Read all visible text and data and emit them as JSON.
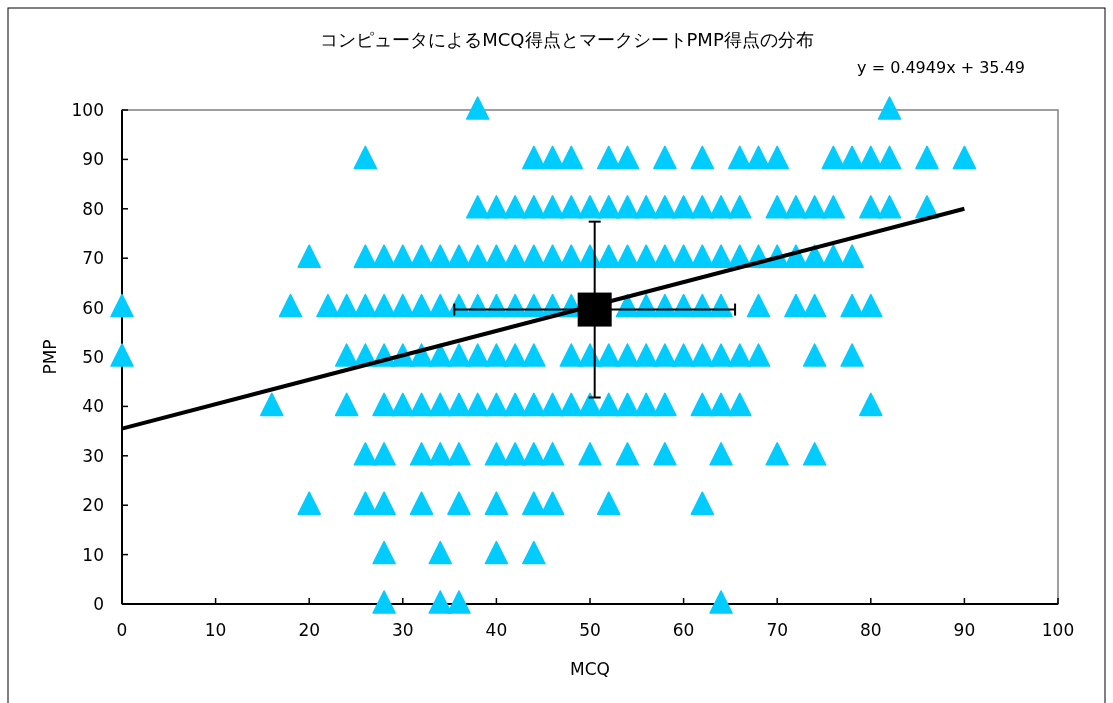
{
  "chart_data": {
    "type": "scatter",
    "title": "コンピュータによるMCQ得点とマークシートPMP得点の分布",
    "xlabel": "MCQ",
    "ylabel": "PMP",
    "xlim": [
      0,
      100
    ],
    "ylim": [
      0,
      100
    ],
    "xticks": [
      0,
      10,
      20,
      30,
      40,
      50,
      60,
      70,
      80,
      90,
      100
    ],
    "yticks": [
      0,
      10,
      20,
      30,
      40,
      50,
      60,
      70,
      80,
      90,
      100
    ],
    "grid": false,
    "annotations": [
      "y = 0.4949x + 35.49"
    ],
    "series": [
      {
        "type": "scatter",
        "marker": "triangle",
        "color": "#00ccff",
        "x": [
          38,
          82
        ],
        "values": [
          100,
          100
        ]
      },
      {
        "type": "scatter",
        "marker": "triangle",
        "color": "#00ccff",
        "x": [
          26,
          44,
          46,
          48,
          52,
          54,
          58,
          62,
          66,
          68,
          70,
          76,
          78,
          80,
          82,
          86,
          90
        ],
        "values": [
          90,
          90,
          90,
          90,
          90,
          90,
          90,
          90,
          90,
          90,
          90,
          90,
          90,
          90,
          90,
          90,
          90
        ]
      },
      {
        "type": "scatter",
        "marker": "triangle",
        "color": "#00ccff",
        "x": [
          38,
          40,
          42,
          44,
          46,
          48,
          50,
          52,
          54,
          56,
          58,
          60,
          62,
          64,
          66,
          70,
          72,
          74,
          76,
          80,
          82,
          86
        ],
        "values": [
          80,
          80,
          80,
          80,
          80,
          80,
          80,
          80,
          80,
          80,
          80,
          80,
          80,
          80,
          80,
          80,
          80,
          80,
          80,
          80,
          80,
          80
        ]
      },
      {
        "type": "scatter",
        "marker": "triangle",
        "color": "#00ccff",
        "x": [
          20,
          26,
          28,
          30,
          32,
          34,
          36,
          38,
          40,
          42,
          44,
          46,
          48,
          50,
          52,
          54,
          56,
          58,
          60,
          62,
          64,
          66,
          68,
          70,
          72,
          74,
          76,
          78
        ],
        "values": [
          70,
          70,
          70,
          70,
          70,
          70,
          70,
          70,
          70,
          70,
          70,
          70,
          70,
          70,
          70,
          70,
          70,
          70,
          70,
          70,
          70,
          70,
          70,
          70,
          70,
          70,
          70,
          70
        ]
      },
      {
        "type": "scatter",
        "marker": "triangle",
        "color": "#00ccff",
        "x": [
          0,
          18,
          22,
          24,
          26,
          28,
          30,
          32,
          34,
          36,
          38,
          40,
          42,
          44,
          46,
          48,
          54,
          56,
          58,
          60,
          62,
          64,
          68,
          72,
          74,
          78,
          80
        ],
        "values": [
          60,
          60,
          60,
          60,
          60,
          60,
          60,
          60,
          60,
          60,
          60,
          60,
          60,
          60,
          60,
          60,
          60,
          60,
          60,
          60,
          60,
          60,
          60,
          60,
          60,
          60,
          60
        ]
      },
      {
        "type": "scatter",
        "marker": "triangle",
        "color": "#00ccff",
        "x": [
          0,
          24,
          26,
          28,
          30,
          32,
          34,
          36,
          38,
          40,
          42,
          44,
          48,
          50,
          52,
          54,
          56,
          58,
          60,
          62,
          64,
          66,
          68,
          74,
          78
        ],
        "values": [
          50,
          50,
          50,
          50,
          50,
          50,
          50,
          50,
          50,
          50,
          50,
          50,
          50,
          50,
          50,
          50,
          50,
          50,
          50,
          50,
          50,
          50,
          50,
          50,
          50
        ]
      },
      {
        "type": "scatter",
        "marker": "triangle",
        "color": "#00ccff",
        "x": [
          16,
          24,
          28,
          30,
          32,
          34,
          36,
          38,
          40,
          42,
          44,
          46,
          48,
          50,
          52,
          54,
          56,
          58,
          62,
          64,
          66,
          80
        ],
        "values": [
          40,
          40,
          40,
          40,
          40,
          40,
          40,
          40,
          40,
          40,
          40,
          40,
          40,
          40,
          40,
          40,
          40,
          40,
          40,
          40,
          40,
          40
        ]
      },
      {
        "type": "scatter",
        "marker": "triangle",
        "color": "#00ccff",
        "x": [
          26,
          28,
          32,
          34,
          36,
          40,
          42,
          44,
          46,
          50,
          54,
          58,
          64,
          70,
          74
        ],
        "values": [
          30,
          30,
          30,
          30,
          30,
          30,
          30,
          30,
          30,
          30,
          30,
          30,
          30,
          30,
          30
        ]
      },
      {
        "type": "scatter",
        "marker": "triangle",
        "color": "#00ccff",
        "x": [
          20,
          26,
          28,
          32,
          36,
          40,
          44,
          46,
          52,
          62
        ],
        "values": [
          20,
          20,
          20,
          20,
          20,
          20,
          20,
          20,
          20,
          20
        ]
      },
      {
        "type": "scatter",
        "marker": "triangle",
        "color": "#00ccff",
        "x": [
          28,
          34,
          40,
          44
        ],
        "values": [
          10,
          10,
          10,
          10
        ]
      },
      {
        "type": "scatter",
        "marker": "triangle",
        "color": "#00ccff",
        "x": [
          28,
          34,
          36,
          64
        ],
        "values": [
          0,
          0,
          0,
          0
        ]
      },
      {
        "type": "line",
        "color": "#000000",
        "x": [
          0,
          90
        ],
        "values": [
          35.5,
          80
        ]
      },
      {
        "type": "scatter",
        "marker": "square",
        "color": "#000000",
        "x": [
          50.5
        ],
        "values": [
          59.6
        ],
        "errors": [
          17.8
        ],
        "xerrors": [
          15
        ]
      }
    ]
  }
}
